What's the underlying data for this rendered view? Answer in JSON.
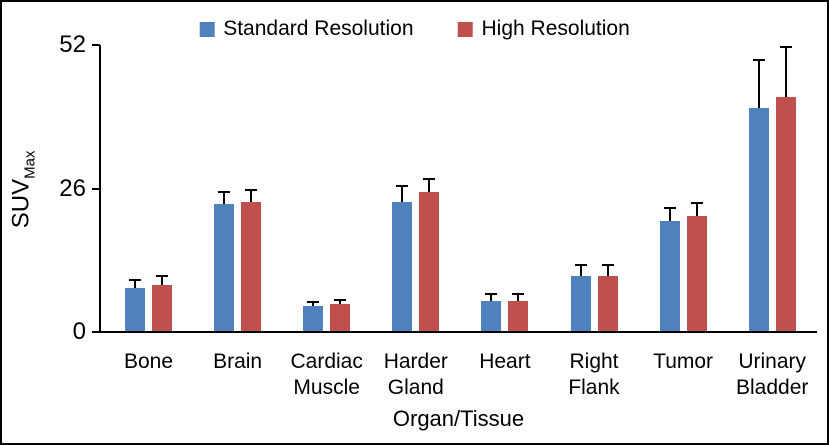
{
  "chart_data": {
    "type": "bar",
    "title": "",
    "xlabel": "Organ/Tissue",
    "ylabel": "SUV",
    "ylabel_subscript": "Max",
    "categories": [
      "Bone",
      "Brain",
      "Cardiac Muscle",
      "Harder Gland",
      "Heart",
      "Right Flank",
      "Tumor",
      "Urinary Bladder"
    ],
    "series": [
      {
        "name": "Standard Resolution",
        "color": "#4F81BD",
        "values": [
          8.0,
          23.2,
          4.8,
          23.6,
          5.6,
          10.1,
          20.2,
          40.5
        ],
        "errors": [
          1.5,
          2.1,
          0.7,
          2.9,
          1.2,
          2.1,
          2.2,
          8.7
        ]
      },
      {
        "name": "High Resolution",
        "color": "#C0504D",
        "values": [
          8.6,
          23.6,
          5.1,
          25.3,
          5.7,
          10.1,
          21.1,
          42.6
        ],
        "errors": [
          1.5,
          2.2,
          0.7,
          2.5,
          1.2,
          2.0,
          2.3,
          9.0
        ]
      }
    ],
    "ylim": [
      0,
      52
    ],
    "yticks": [
      0,
      26,
      52
    ],
    "grid": false,
    "legend_position": "top",
    "error_bars": "upper"
  }
}
